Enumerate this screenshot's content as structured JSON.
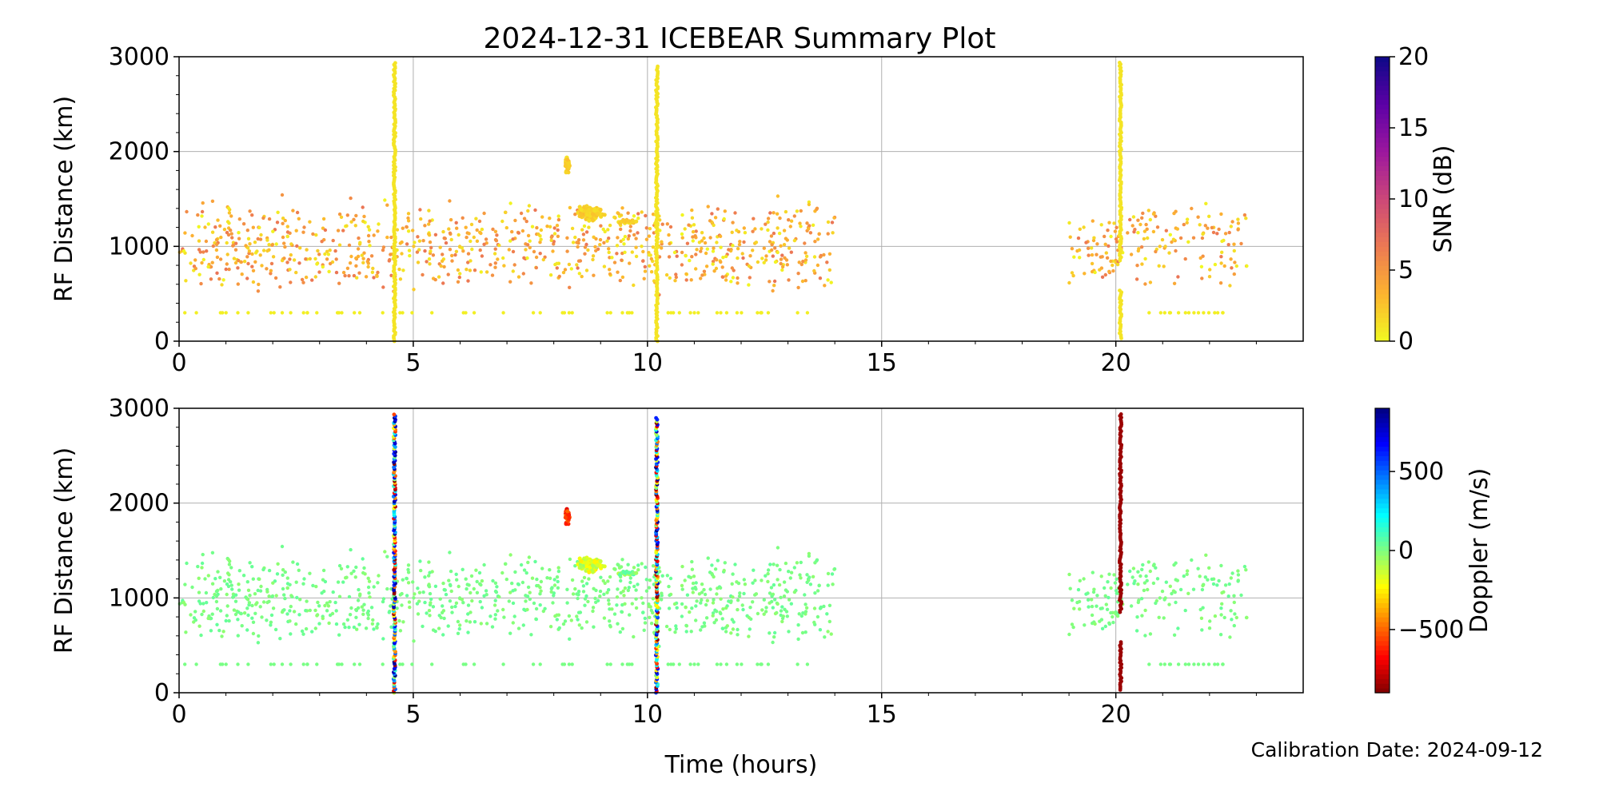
{
  "figure": {
    "title": "2024-12-31 ICEBEAR Summary Plot",
    "xlabel": "Time (hours)",
    "footnote": "Calibration Date: 2024-09-12"
  },
  "chart_data": [
    {
      "type": "scatter",
      "name": "snr-panel",
      "xlim": [
        0,
        24
      ],
      "ylim": [
        0,
        3000
      ],
      "xticks": [
        0,
        5,
        10,
        15,
        20
      ],
      "yticks": [
        0,
        1000,
        2000,
        3000
      ],
      "ylabel": "RF Distance (km)",
      "grid": true,
      "colorbar": {
        "label": "SNR (dB)",
        "range": [
          0,
          20
        ],
        "ticks": [
          0,
          5,
          10,
          15,
          20
        ],
        "colormap": "plasma_r",
        "colors": [
          "#f0f921",
          "#fdb42f",
          "#ed7953",
          "#cc4778",
          "#9c179e",
          "#5c01a6",
          "#0d0887"
        ]
      },
      "columns": [
        {
          "x": 4.6,
          "y_start": 0,
          "y_end": 2950,
          "value": 1
        },
        {
          "x": 10.2,
          "y_start": 0,
          "y_end": 2900,
          "value": 1
        },
        {
          "x": 20.1,
          "y_start": 850,
          "y_end": 2950,
          "value": 1
        },
        {
          "x": 20.1,
          "y_start": 30,
          "y_end": 550,
          "value": 1
        }
      ],
      "clusters": [
        {
          "x_center": 8.8,
          "y_center": 1350,
          "x_spread": 0.4,
          "y_spread": 90,
          "count": 140,
          "value": 2
        },
        {
          "x_center": 8.3,
          "y_center": 1850,
          "x_spread": 0.08,
          "y_spread": 140,
          "count": 30,
          "value": 2
        },
        {
          "x_center": 9.6,
          "y_center": 1260,
          "x_spread": 0.3,
          "y_spread": 30,
          "count": 25,
          "value": 2
        }
      ],
      "scatter_regions": [
        {
          "x_range": [
            0,
            14
          ],
          "y_range": [
            250,
            1850
          ],
          "count": 900,
          "value_range": [
            0,
            7
          ]
        },
        {
          "x_range": [
            19,
            22.8
          ],
          "y_range": [
            250,
            1850
          ],
          "count": 180,
          "value_range": [
            0,
            7
          ]
        }
      ],
      "baseline_rows": [
        {
          "x_range": [
            0.1,
            13.5
          ],
          "y": 300,
          "count": 60
        },
        {
          "x_range": [
            20.5,
            22.3
          ],
          "y": 300,
          "count": 16
        }
      ]
    },
    {
      "type": "scatter",
      "name": "doppler-panel",
      "xlim": [
        0,
        24
      ],
      "ylim": [
        0,
        3000
      ],
      "xticks": [
        0,
        5,
        10,
        15,
        20
      ],
      "yticks": [
        0,
        1000,
        2000,
        3000
      ],
      "ylabel": "RF Distance (km)",
      "grid": true,
      "colorbar": {
        "label": "Doppler (m/s)",
        "range": [
          -900,
          900
        ],
        "ticks": [
          -500,
          0,
          500
        ],
        "tick_labels": [
          "−500",
          "0",
          "500"
        ],
        "colormap": "jet_r",
        "colors": [
          "#7f0000",
          "#ff0000",
          "#ff7f00",
          "#ffff00",
          "#7fff7f",
          "#00ffff",
          "#007fff",
          "#0000ff",
          "#00007f"
        ]
      },
      "columns": [
        {
          "x": 4.6,
          "y_start": 0,
          "y_end": 2950,
          "value": "mixed"
        },
        {
          "x": 10.2,
          "y_start": 0,
          "y_end": 2900,
          "value": "mixed"
        },
        {
          "x": 20.1,
          "y_start": 850,
          "y_end": 2950,
          "value": -850
        },
        {
          "x": 20.1,
          "y_start": 30,
          "y_end": 550,
          "value": -850
        }
      ],
      "clusters": [
        {
          "x_center": 8.8,
          "y_center": 1350,
          "x_spread": 0.4,
          "y_spread": 90,
          "count": 140,
          "value": -150
        },
        {
          "x_center": 8.3,
          "y_center": 1850,
          "x_spread": 0.08,
          "y_spread": 140,
          "count": 30,
          "value": -600
        },
        {
          "x_center": 9.6,
          "y_center": 1260,
          "x_spread": 0.3,
          "y_spread": 30,
          "count": 25,
          "value": 20
        }
      ],
      "scatter_regions": [
        {
          "x_range": [
            0,
            14
          ],
          "y_range": [
            250,
            1850
          ],
          "count": 900,
          "value_range": [
            -30,
            50
          ]
        },
        {
          "x_range": [
            19,
            22.8
          ],
          "y_range": [
            250,
            1850
          ],
          "count": 180,
          "value_range": [
            -30,
            50
          ]
        }
      ],
      "baseline_rows": [
        {
          "x_range": [
            0.1,
            13.5
          ],
          "y": 300,
          "count": 60
        },
        {
          "x_range": [
            20.5,
            22.3
          ],
          "y": 300,
          "count": 16
        }
      ]
    }
  ]
}
